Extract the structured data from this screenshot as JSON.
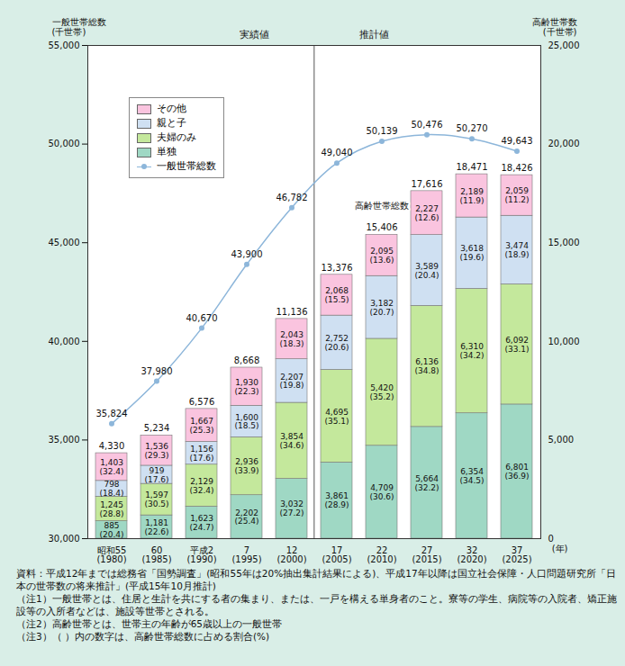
{
  "chart_data": {
    "type": "bar",
    "stacked": true,
    "data_labels": true,
    "grid": false,
    "legend": "top-left",
    "xlabel": "(年)",
    "ylabel": "一般世帯総数\n(千世帯)",
    "y2label": "高齢世帯数\n(千世帯)",
    "categories": [
      "昭和55\n(1980)",
      "60\n(1985)",
      "平成2\n(1990)",
      "7\n(1995)",
      "12\n(2000)",
      "17\n(2005)",
      "22\n(2010)",
      "27\n(2015)",
      "32\n(2020)",
      "37\n(2025)"
    ],
    "ylim": [
      30000,
      55000
    ],
    "yticks": [
      {
        "value": 30000,
        "label": "30,000"
      },
      {
        "value": 35000,
        "label": "35,000"
      },
      {
        "value": 40000,
        "label": "40,000"
      },
      {
        "value": 45000,
        "label": "45,000"
      },
      {
        "value": 50000,
        "label": "50,000"
      },
      {
        "value": 55000,
        "label": "55,000"
      }
    ],
    "y2lim": [
      0,
      25000
    ],
    "y2ticks": [
      0,
      {
        "value": 5000,
        "label": "5,000"
      },
      {
        "value": 10000,
        "label": "10,000"
      },
      {
        "value": 15000,
        "label": "15,000"
      },
      {
        "value": 20000,
        "label": "20,000"
      },
      {
        "value": 25000,
        "label": "25,000"
      }
    ],
    "series": [
      {
        "name": "単独",
        "type": "bar",
        "axis": "y2",
        "color": "#9fd8c4",
        "values": [
          885,
          1181,
          1623,
          2202,
          3032,
          3861,
          4709,
          5664,
          6354,
          6801
        ],
        "value_labels": [
          "885\n(20.4)",
          "1,181\n(22.6)",
          "1,623\n(24.7)",
          "2,202\n(25.4)",
          "3,032\n(27.2)",
          "3,861\n(28.9)",
          "4,709\n(30.6)",
          "5,664\n(32.2)",
          "6,354\n(34.5)",
          "6,801\n(36.9)"
        ]
      },
      {
        "name": "夫婦のみ",
        "type": "bar",
        "axis": "y2",
        "color": "#c4e89c",
        "values": [
          1245,
          1597,
          2129,
          2936,
          3854,
          4695,
          5420,
          6136,
          6310,
          6092
        ],
        "value_labels": [
          "1,245\n(28.8)",
          "1,597\n(30.5)",
          "2,129\n(32.4)",
          "2,936\n(33.9)",
          "3,854\n(34.6)",
          "4,695\n(35.1)",
          "5,420\n(35.2)",
          "6,136\n(34.8)",
          "6,310\n(34.2)",
          "6,092\n(33.1)"
        ]
      },
      {
        "name": "親と子",
        "type": "bar",
        "axis": "y2",
        "color": "#cfe0f2",
        "values": [
          798,
          919,
          1156,
          1600,
          2207,
          2752,
          3182,
          3589,
          3618,
          3474
        ],
        "value_labels": [
          "798\n(18.4)",
          "919\n(17.6)",
          "1,156\n(17.6)",
          "1,600\n(18.5)",
          "2,207\n(19.8)",
          "2,752\n(20.6)",
          "3,182\n(20.7)",
          "3,589\n(20.4)",
          "3,618\n(19.6)",
          "3,474\n(18.9)"
        ]
      },
      {
        "name": "その他",
        "type": "bar",
        "axis": "y2",
        "color": "#fac4df",
        "values": [
          1403,
          1536,
          1667,
          1930,
          2043,
          2068,
          2095,
          2227,
          2189,
          2059
        ],
        "value_labels": [
          "1,403\n(32.4)",
          "1,536\n(29.3)",
          "1,667\n(25.3)",
          "1,930\n(22.3)",
          "2,043\n(18.3)",
          "2,068\n(15.5)",
          "2,095\n(13.6)",
          "2,227\n(12.6)",
          "2,189\n(11.9)",
          "2,059\n(11.2)"
        ]
      },
      {
        "name": "一般世帯総数",
        "type": "line",
        "marker": "circle",
        "line_style": "solid",
        "color": "#8db6da",
        "values": [
          35824,
          37980,
          40670,
          43900,
          46782,
          49040,
          50139,
          50476,
          50270,
          49643
        ],
        "value_labels": [
          "35,824",
          "37,980",
          "40,670",
          "43,900",
          "46,782",
          "49,040",
          "50,139",
          "50,476",
          "50,270",
          "49,643"
        ]
      }
    ],
    "total_labels": [
      "4,330",
      "5,234",
      "6,576",
      "8,668",
      "11,136",
      "13,376",
      "15,406",
      "17,616",
      "18,471",
      "18,426"
    ],
    "annotations": [
      {
        "text": "高齢世帯総数",
        "x": "22\n(2010)"
      },
      {
        "text": "実績値",
        "until": "12\n(2000)"
      },
      {
        "text": "推計値",
        "from": "17\n(2005)"
      }
    ],
    "caption": [
      "資料：平成12年までは総務省「国勢調査」(昭和55年は20%抽出集計結果による)、平成17年以降は国立社会保障・人口問題研究所「日本の世帯数の将来推計」(平成15年10月推計)",
      "（注1）一般世帯とは、住居と生計を共にする者の集まり、または、一戸を構える単身者のこと。寮等の学生、病院等の入院者、矯正施設等の入所者などは、施設等世帯とされる。",
      "（注2）高齢世帯とは、世帯主の年齢が65歳以上の一般世帯",
      "（注3）（ ）内の数字は、高齢世帯総数に占める割合(%)"
    ]
  }
}
